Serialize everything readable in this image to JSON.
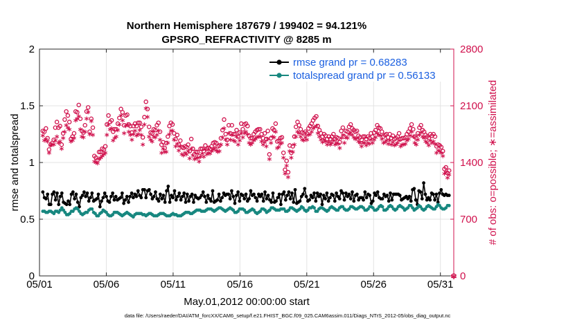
{
  "chart_data": {
    "type": "line",
    "title": [
      "Northern Hemisphere 187679 / 199402 = 94.121%",
      "GPSRO_REFRACTIVITY @ 8285 m"
    ],
    "xlabel": "May.01,2012 00:00:00 start",
    "ylabel": "rmse and totalspread",
    "y2label": "# of obs: o=possible; ∗=assimilated",
    "footnote": "data file: /Users/raeder/DAI/ATM_forcXX/CAM6_setup/f.e21.FHIST_BGC.f09_025.CAM6assim.011/Diags_NTrS_2012-05/obs_diag_output.nc",
    "xlim": [
      0,
      31
    ],
    "x_ticks": [
      0,
      5,
      10,
      15,
      20,
      25,
      30
    ],
    "x_tick_labels": [
      "05/01",
      "05/06",
      "05/11",
      "05/16",
      "05/21",
      "05/26",
      "05/31"
    ],
    "ylim": [
      0,
      2
    ],
    "y_ticks": [
      0,
      0.5,
      1,
      1.5,
      2
    ],
    "y_tick_labels": [
      "0",
      "0.5",
      "1",
      "1.5",
      "2"
    ],
    "y2lim": [
      0,
      2800
    ],
    "y2_ticks": [
      0,
      700,
      1400,
      2100,
      2800
    ],
    "y2_tick_labels": [
      "0",
      "700",
      "1400",
      "2100",
      "2800"
    ],
    "grid": true,
    "legend_position": "top-right",
    "series": [
      {
        "name": "rmse grand pr = 0.68283",
        "color": "#000000",
        "marker": "circle",
        "axis": "left",
        "values": [
          0.74,
          0.69,
          0.68,
          0.72,
          0.63,
          0.63,
          0.72,
          0.74,
          0.67,
          0.73,
          0.63,
          0.7,
          0.73,
          0.65,
          0.64,
          0.63,
          0.66,
          0.63,
          0.72,
          0.74,
          0.68,
          0.72,
          0.65,
          0.61,
          0.69,
          0.71,
          0.74,
          0.7,
          0.73,
          0.66,
          0.69,
          0.73,
          0.66,
          0.67,
          0.68,
          0.72,
          0.61,
          0.66,
          0.69,
          0.73,
          0.7,
          0.66,
          0.65,
          0.7,
          0.73,
          0.67,
          0.7,
          0.67,
          0.68,
          0.69,
          0.73,
          0.64,
          0.67,
          0.7,
          0.65,
          0.7,
          0.73,
          0.69,
          0.72,
          0.7,
          0.75,
          0.71,
          0.69,
          0.76,
          0.76,
          0.69,
          0.75,
          0.76,
          0.72,
          0.68,
          0.7,
          0.74,
          0.68,
          0.66,
          0.72,
          0.68,
          0.71,
          0.65,
          0.75,
          0.79,
          0.65,
          0.71,
          0.69,
          0.75,
          0.67,
          0.7,
          0.73,
          0.67,
          0.7,
          0.73,
          0.65,
          0.72,
          0.66,
          0.7,
          0.72,
          0.65,
          0.71,
          0.69,
          0.68,
          0.69,
          0.71,
          0.74,
          0.7,
          0.65,
          0.71,
          0.68,
          0.66,
          0.75,
          0.65,
          0.66,
          0.67,
          0.72,
          0.66,
          0.69,
          0.73,
          0.71,
          0.72,
          0.72,
          0.68,
          0.75,
          0.7,
          0.64,
          0.71,
          0.74,
          0.66,
          0.72,
          0.71,
          0.68,
          0.72,
          0.66,
          0.68,
          0.75,
          0.71,
          0.72,
          0.69,
          0.66,
          0.72,
          0.7,
          0.72,
          0.66,
          0.74,
          0.68,
          0.71,
          0.67,
          0.65,
          0.73,
          0.65,
          0.66,
          0.69,
          0.72,
          0.63,
          0.72,
          0.74,
          0.67,
          0.71,
          0.74,
          0.68,
          0.73,
          0.65,
          0.76,
          0.64,
          0.65,
          0.66,
          0.7,
          0.72,
          0.77,
          0.7,
          0.66,
          0.67,
          0.71,
          0.69,
          0.73,
          0.66,
          0.73,
          0.7,
          0.72,
          0.63,
          0.71,
          0.68,
          0.73,
          0.66,
          0.69,
          0.72,
          0.71,
          0.66,
          0.73,
          0.7,
          0.68,
          0.75,
          0.73,
          0.67,
          0.73,
          0.7,
          0.72,
          0.68,
          0.74,
          0.66,
          0.71,
          0.72,
          0.67,
          0.69,
          0.69,
          0.67,
          0.74,
          0.69,
          0.72,
          0.71,
          0.64,
          0.66,
          0.73,
          0.71,
          0.74,
          0.69,
          0.68,
          0.68,
          0.72,
          0.7,
          0.71,
          0.66,
          0.73,
          0.67,
          0.72,
          0.72,
          0.72,
          0.72,
          0.71,
          0.67,
          0.68,
          0.69,
          0.7,
          0.68,
          0.7,
          0.66,
          0.76,
          0.77,
          0.67,
          0.63,
          0.75,
          0.74,
          0.68,
          0.82,
          0.72,
          0.67,
          0.69,
          0.67,
          0.73,
          0.72,
          0.67,
          0.72,
          0.65,
          0.73,
          0.76,
          0.72,
          0.71,
          0.72,
          0.71,
          0.71
        ]
      },
      {
        "name": "totalspread grand pr = 0.56133",
        "color": "#17877f",
        "marker": "circle",
        "axis": "left",
        "values": [
          0.57,
          0.57,
          0.56,
          0.56,
          0.57,
          0.57,
          0.56,
          0.55,
          0.57,
          0.57,
          0.56,
          0.58,
          0.6,
          0.58,
          0.56,
          0.54,
          0.54,
          0.55,
          0.57,
          0.57,
          0.59,
          0.6,
          0.59,
          0.57,
          0.55,
          0.54,
          0.55,
          0.56,
          0.56,
          0.58,
          0.59,
          0.59,
          0.56,
          0.55,
          0.53,
          0.53,
          0.55,
          0.56,
          0.58,
          0.57,
          0.56,
          0.54,
          0.53,
          0.53,
          0.54,
          0.56,
          0.56,
          0.56,
          0.55,
          0.54,
          0.53,
          0.54,
          0.55,
          0.56,
          0.55,
          0.54,
          0.53,
          0.52,
          0.54,
          0.55,
          0.55,
          0.55,
          0.55,
          0.54,
          0.54,
          0.53,
          0.54,
          0.55,
          0.55,
          0.54,
          0.53,
          0.53,
          0.53,
          0.54,
          0.55,
          0.55,
          0.55,
          0.54,
          0.53,
          0.53,
          0.53,
          0.54,
          0.55,
          0.54,
          0.54,
          0.53,
          0.53,
          0.53,
          0.54,
          0.55,
          0.56,
          0.56,
          0.56,
          0.55,
          0.55,
          0.56,
          0.57,
          0.58,
          0.58,
          0.58,
          0.57,
          0.57,
          0.57,
          0.58,
          0.59,
          0.59,
          0.59,
          0.58,
          0.57,
          0.58,
          0.59,
          0.6,
          0.6,
          0.59,
          0.58,
          0.57,
          0.58,
          0.59,
          0.6,
          0.59,
          0.58,
          0.56,
          0.56,
          0.57,
          0.59,
          0.59,
          0.59,
          0.58,
          0.56,
          0.56,
          0.57,
          0.58,
          0.59,
          0.58,
          0.56,
          0.55,
          0.56,
          0.57,
          0.59,
          0.59,
          0.58,
          0.56,
          0.57,
          0.58,
          0.6,
          0.6,
          0.59,
          0.58,
          0.58,
          0.58,
          0.59,
          0.59,
          0.59,
          0.57,
          0.57,
          0.58,
          0.6,
          0.6,
          0.59,
          0.58,
          0.57,
          0.58,
          0.59,
          0.61,
          0.6,
          0.58,
          0.57,
          0.58,
          0.6,
          0.6,
          0.61,
          0.6,
          0.57,
          0.57,
          0.59,
          0.6,
          0.6,
          0.59,
          0.58,
          0.57,
          0.58,
          0.6,
          0.61,
          0.6,
          0.59,
          0.58,
          0.58,
          0.6,
          0.61,
          0.61,
          0.59,
          0.58,
          0.58,
          0.59,
          0.61,
          0.61,
          0.6,
          0.59,
          0.59,
          0.6,
          0.61,
          0.61,
          0.6,
          0.58,
          0.58,
          0.59,
          0.61,
          0.61,
          0.6,
          0.58,
          0.58,
          0.59,
          0.61,
          0.62,
          0.61,
          0.58,
          0.58,
          0.59,
          0.61,
          0.62,
          0.61,
          0.59,
          0.58,
          0.59,
          0.61,
          0.62,
          0.61,
          0.6,
          0.58,
          0.59,
          0.6,
          0.62,
          0.62,
          0.6,
          0.58,
          0.59,
          0.6,
          0.62,
          0.61,
          0.59,
          0.58,
          0.59,
          0.61,
          0.62,
          0.61,
          0.6,
          0.59,
          0.59,
          0.61,
          0.63,
          0.62,
          0.6,
          0.59,
          0.59,
          0.6,
          0.62,
          0.62
        ]
      },
      {
        "name": "possible",
        "color": "#d0104c",
        "marker": "o",
        "axis": "right",
        "values": [
          1790,
          1780,
          1820,
          1700,
          1560,
          1620,
          1640,
          1680,
          1830,
          1900,
          1830,
          1850,
          1620,
          1760,
          1930,
          2030,
          1980,
          1900,
          1690,
          1720,
          1760,
          2030,
          2020,
          2110,
          1940,
          1790,
          1770,
          1860,
          2030,
          2080,
          1780,
          1940,
          1830,
          1480,
          1460,
          1430,
          1530,
          1530,
          1570,
          1560,
          1600,
          1870,
          1980,
          1900,
          1920,
          1780,
          1810,
          1810,
          1880,
          1950,
          2060,
          2020,
          1860,
          1980,
          1990,
          1870,
          1850,
          1770,
          1850,
          1880,
          1850,
          1890,
          1890,
          1840,
          1710,
          1960,
          2150,
          2060,
          1840,
          1770,
          1760,
          1810,
          1800,
          1860,
          1890,
          1780,
          1620,
          1650,
          1580,
          1640,
          1720,
          1850,
          1890,
          1870,
          1760,
          1690,
          1740,
          1620,
          1670,
          1590,
          1580,
          1600,
          1590,
          1620,
          1540,
          1690,
          1570,
          1500,
          1530,
          1530,
          1480,
          1570,
          1570,
          1540,
          1610,
          1570,
          1580,
          1570,
          1600,
          1640,
          1650,
          1640,
          1600,
          1610,
          1700,
          1800,
          1930,
          1750,
          1680,
          1860,
          1760,
          1860,
          1750,
          1750,
          1800,
          1720,
          1770,
          1880,
          1810,
          1870,
          1880,
          1850,
          1730,
          1700,
          1700,
          1750,
          1780,
          1800,
          1810,
          1810,
          1750,
          1700,
          1760,
          1690,
          1790,
          1500,
          1700,
          1820,
          1800,
          1880,
          1660,
          1670,
          1700,
          1710,
          1520,
          1310,
          1420,
          1280,
          1610,
          1520,
          1600,
          1720,
          1840,
          1900,
          1860,
          1810,
          1770,
          1760,
          1780,
          1760,
          1820,
          1850,
          1880,
          1920,
          1950,
          1970,
          1850,
          1800,
          1760,
          1720,
          1750,
          1730,
          1690,
          1720,
          1690,
          1720,
          1750,
          1690,
          1710,
          1700,
          1650,
          1790,
          1830,
          1720,
          1790,
          1780,
          1840,
          1870,
          1820,
          1800,
          1780,
          1790,
          1730,
          1710,
          1680,
          1720,
          1720,
          1690,
          1720,
          1700,
          1760,
          1720,
          1770,
          1800,
          1860,
          1830,
          1820,
          1780,
          1720,
          1740,
          1750,
          1710,
          1750,
          1700,
          1730,
          1690,
          1700,
          1720,
          1760,
          1690,
          1700,
          1700,
          1710,
          1750,
          1780,
          1820,
          1870,
          1810,
          1720,
          1700,
          1760,
          1830,
          1860,
          1800,
          1780,
          1740,
          1720,
          1700,
          1750,
          1730,
          1750,
          1720,
          1600,
          1620,
          1610,
          1590,
          1540,
          1320,
          1340,
          1270,
          1300
        ]
      },
      {
        "name": "assimilated",
        "color": "#d0104c",
        "marker": "*",
        "axis": "right",
        "values": [
          1710,
          1650,
          1670,
          1640,
          1500,
          1590,
          1600,
          1600,
          1650,
          1700,
          1620,
          1640,
          1550,
          1680,
          1760,
          1840,
          1810,
          1790,
          1640,
          1650,
          1680,
          1900,
          1920,
          1950,
          1790,
          1700,
          1690,
          1760,
          1920,
          2000,
          1730,
          1890,
          1720,
          1390,
          1380,
          1370,
          1420,
          1440,
          1460,
          1480,
          1500,
          1720,
          1850,
          1790,
          1800,
          1650,
          1680,
          1700,
          1780,
          1850,
          1960,
          1900,
          1740,
          1830,
          1850,
          1760,
          1720,
          1660,
          1730,
          1770,
          1710,
          1730,
          1780,
          1720,
          1600,
          1850,
          2050,
          1940,
          1700,
          1660,
          1640,
          1700,
          1690,
          1720,
          1770,
          1660,
          1500,
          1550,
          1510,
          1510,
          1620,
          1730,
          1770,
          1770,
          1660,
          1580,
          1610,
          1530,
          1580,
          1480,
          1470,
          1500,
          1480,
          1520,
          1430,
          1550,
          1470,
          1420,
          1430,
          1440,
          1390,
          1450,
          1490,
          1450,
          1540,
          1480,
          1500,
          1490,
          1520,
          1540,
          1560,
          1530,
          1510,
          1520,
          1600,
          1690,
          1800,
          1660,
          1600,
          1740,
          1660,
          1720,
          1650,
          1640,
          1700,
          1600,
          1650,
          1740,
          1690,
          1740,
          1760,
          1730,
          1620,
          1600,
          1620,
          1650,
          1670,
          1690,
          1700,
          1700,
          1640,
          1600,
          1630,
          1580,
          1670,
          1420,
          1620,
          1700,
          1690,
          1760,
          1560,
          1570,
          1610,
          1620,
          1440,
          1240,
          1340,
          1200,
          1520,
          1440,
          1510,
          1600,
          1700,
          1760,
          1740,
          1700,
          1660,
          1650,
          1690,
          1660,
          1720,
          1730,
          1760,
          1800,
          1820,
          1830,
          1740,
          1700,
          1660,
          1630,
          1660,
          1640,
          1600,
          1630,
          1600,
          1620,
          1650,
          1600,
          1620,
          1610,
          1560,
          1680,
          1720,
          1620,
          1690,
          1680,
          1730,
          1750,
          1720,
          1690,
          1670,
          1680,
          1640,
          1620,
          1580,
          1620,
          1620,
          1590,
          1620,
          1610,
          1660,
          1620,
          1660,
          1690,
          1740,
          1720,
          1710,
          1670,
          1620,
          1630,
          1650,
          1610,
          1650,
          1600,
          1630,
          1590,
          1600,
          1620,
          1650,
          1580,
          1600,
          1600,
          1610,
          1650,
          1670,
          1710,
          1760,
          1700,
          1620,
          1600,
          1660,
          1720,
          1750,
          1700,
          1680,
          1640,
          1620,
          1590,
          1650,
          1620,
          1640,
          1610,
          1500,
          1530,
          1520,
          1500,
          1460,
          1240,
          1260,
          1190,
          1230
        ]
      }
    ],
    "annotations": [
      {
        "text": "∗",
        "note": "assimilated marker at y2=0 on right axis",
        "x": 31.0,
        "y2": 0
      },
      {
        "text": "o",
        "note": "possible marker at y2=0 on right axis",
        "x": 31.0,
        "y2": 0
      }
    ]
  }
}
